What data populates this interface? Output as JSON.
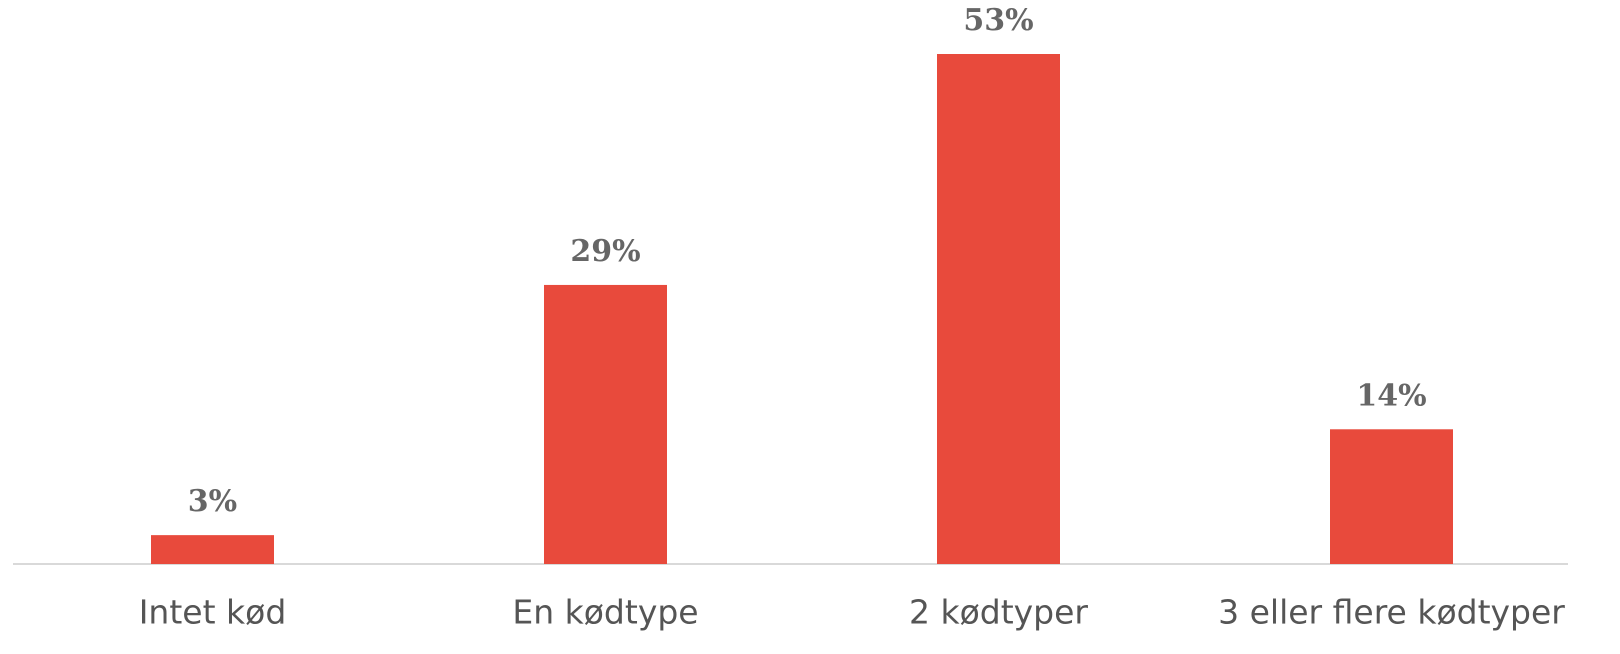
{
  "chart_data": {
    "type": "bar",
    "categories": [
      "Intet kød",
      "En kødtype",
      "2 kødtyper",
      "3 eller flere kødtyper"
    ],
    "values": [
      3,
      29,
      53,
      14
    ],
    "value_labels": [
      "3%",
      "29%",
      "53%",
      "14%"
    ],
    "color": "#e84a3c"
  }
}
